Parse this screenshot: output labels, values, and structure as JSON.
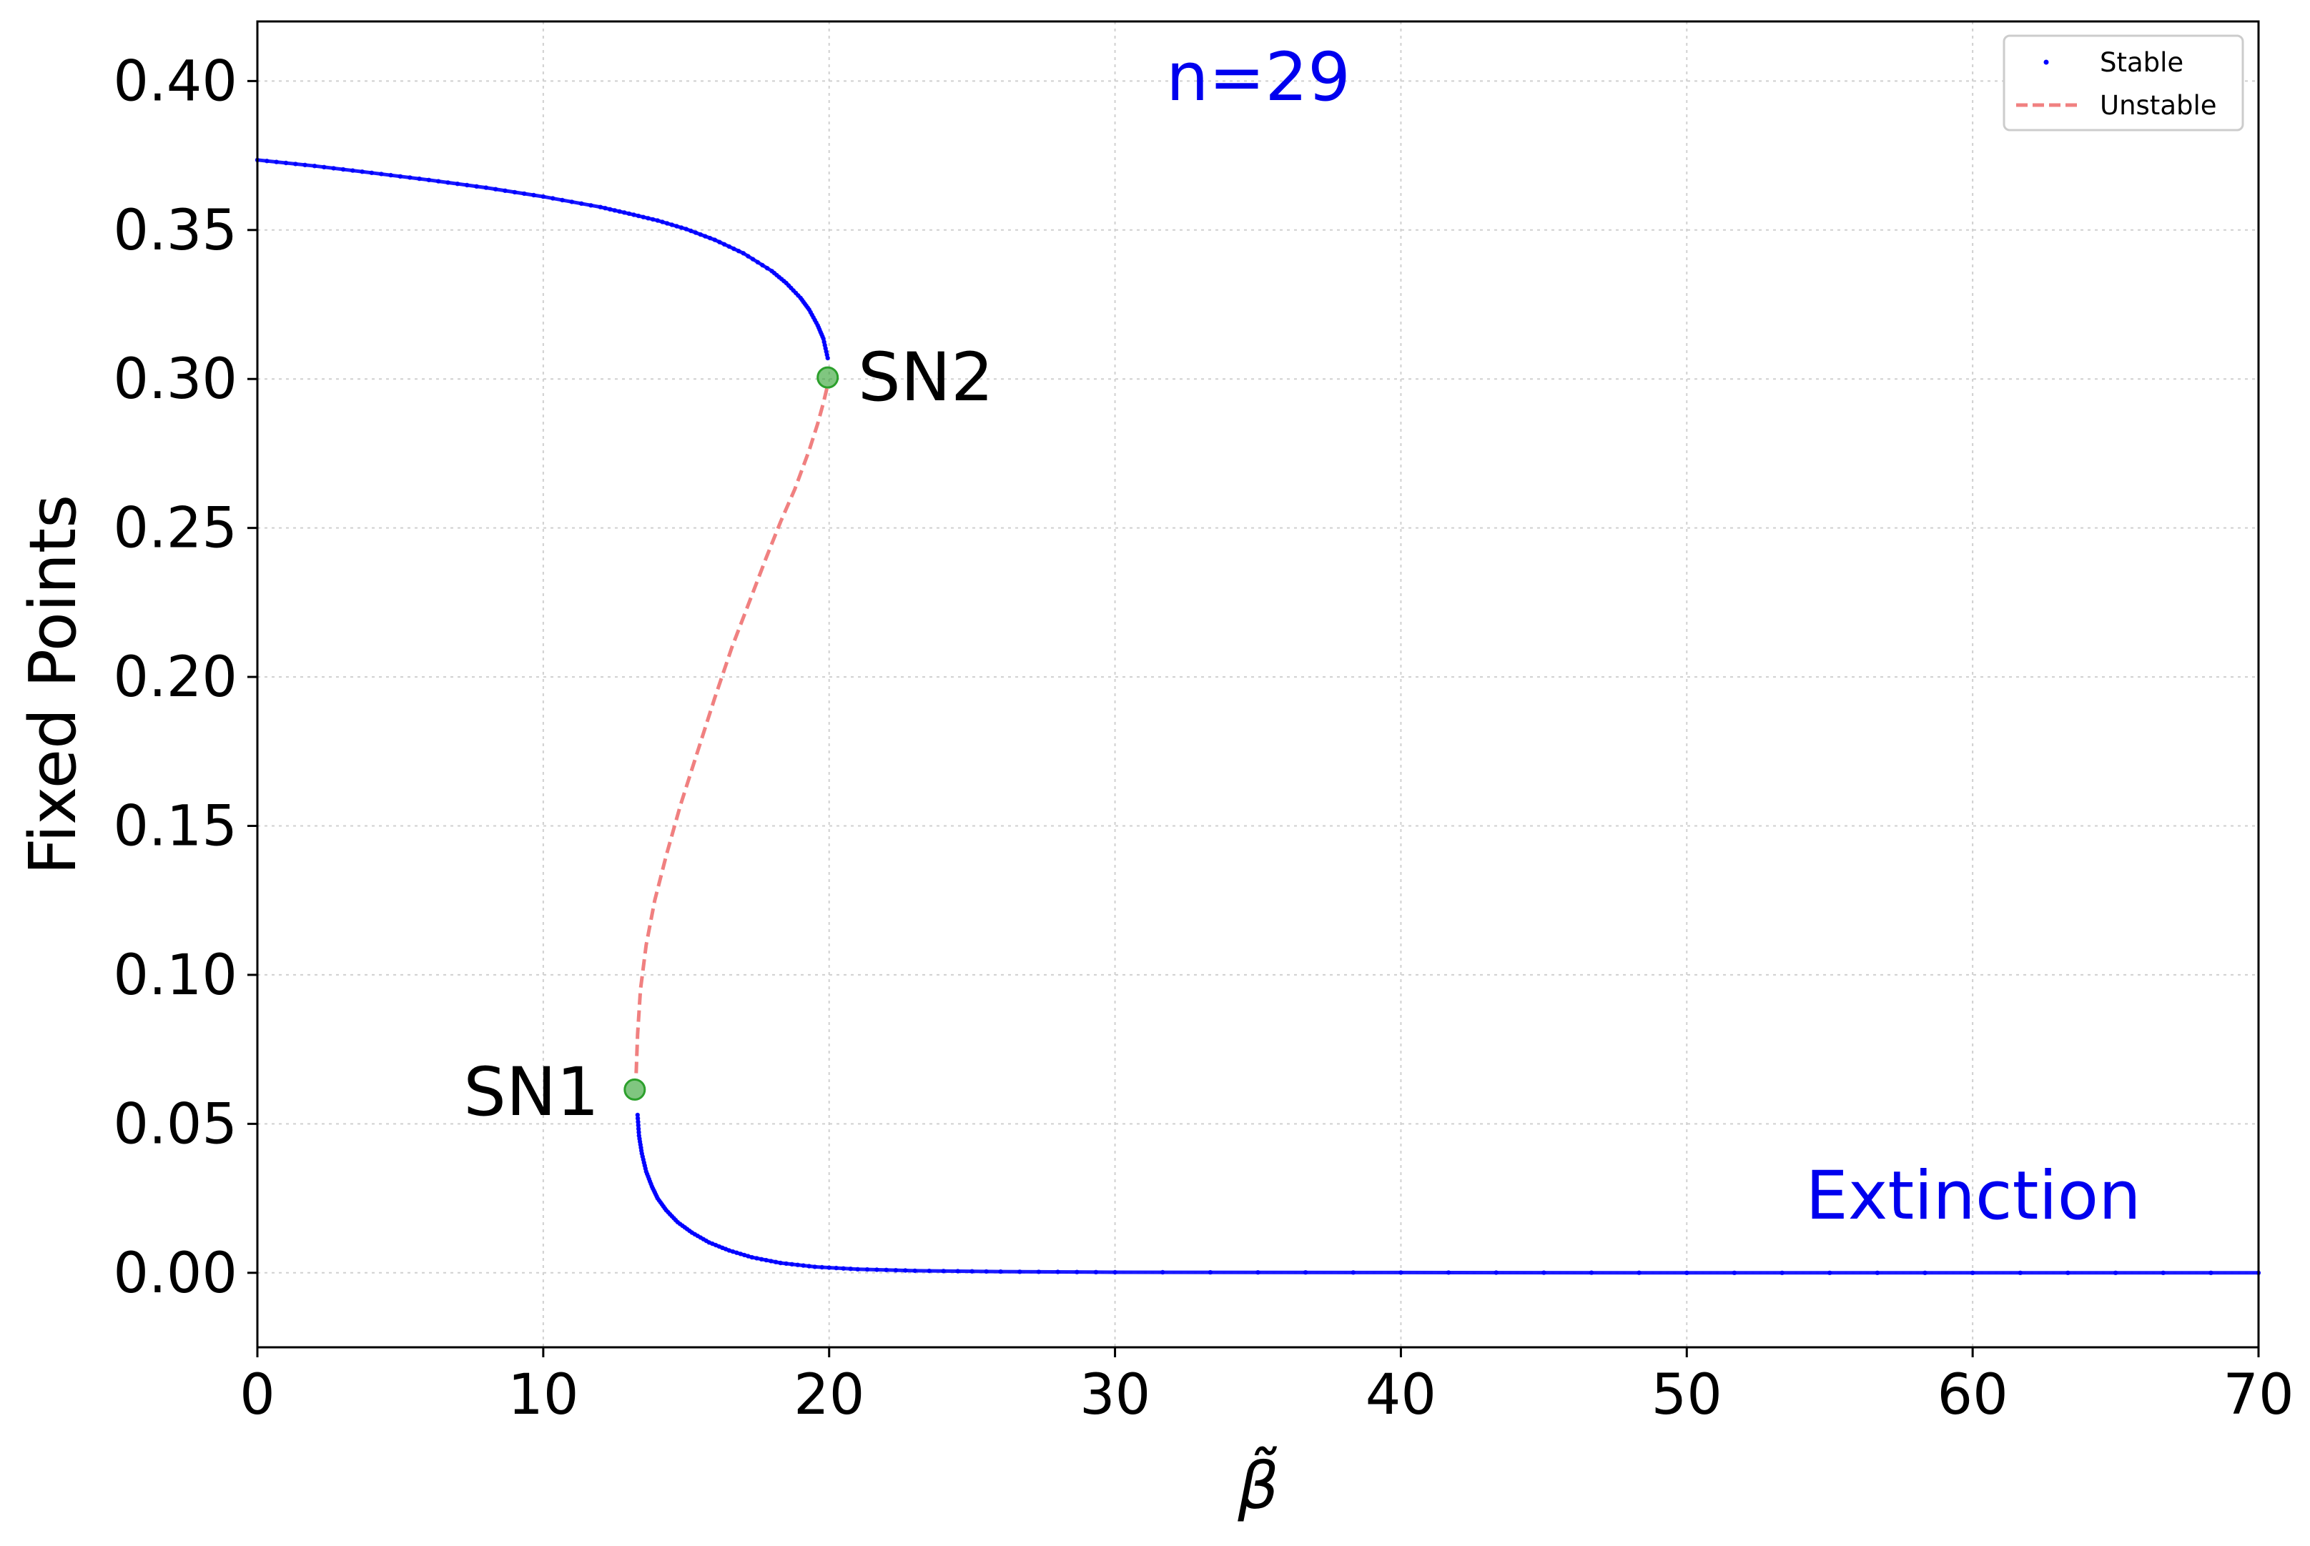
{
  "chart_data": {
    "type": "line",
    "xlabel": "β̃",
    "ylabel": "Fixed Points",
    "xlim": [
      0,
      70
    ],
    "ylim": [
      -0.025,
      0.42
    ],
    "x_ticks": [
      0,
      10,
      20,
      30,
      40,
      50,
      60,
      70
    ],
    "y_ticks": [
      0.0,
      0.05,
      0.1,
      0.15,
      0.2,
      0.25,
      0.3,
      0.35,
      0.4
    ],
    "x_tick_labels": [
      "0",
      "10",
      "20",
      "30",
      "40",
      "50",
      "60",
      "70"
    ],
    "y_tick_labels": [
      "0.00",
      "0.05",
      "0.10",
      "0.15",
      "0.20",
      "0.25",
      "0.30",
      "0.35",
      "0.40"
    ],
    "grid": true,
    "legend_position": "top-right",
    "legend": [
      "Stable",
      "Unstable"
    ],
    "series": [
      {
        "name": "Stable",
        "style": "dots",
        "color": "#0000ff",
        "segments": [
          {
            "x": [
              0,
              2,
              4,
              6,
              8,
              10,
              12,
              13,
              14,
              15,
              16,
              17,
              18,
              18.5,
              19,
              19.3,
              19.6,
              19.8,
              19.95
            ],
            "y": [
              0.3735,
              0.3715,
              0.3692,
              0.3668,
              0.3642,
              0.3612,
              0.3577,
              0.3555,
              0.3532,
              0.3503,
              0.3467,
              0.3422,
              0.3362,
              0.3322,
              0.3272,
              0.3233,
              0.318,
              0.3135,
              0.307
            ]
          },
          {
            "x": [
              13.3,
              13.35,
              13.45,
              13.6,
              13.8,
              14.0,
              14.3,
              14.7,
              15.2,
              15.8,
              16.5,
              17.3,
              18.3,
              19.5,
              21,
              23,
              26,
              30,
              40,
              50,
              60,
              70
            ],
            "y": [
              0.053,
              0.046,
              0.04,
              0.034,
              0.029,
              0.025,
              0.021,
              0.017,
              0.0135,
              0.0102,
              0.0075,
              0.0052,
              0.0033,
              0.002,
              0.0012,
              0.0007,
              0.0004,
              0.0002,
              0.0001,
              0.0,
              0.0,
              0.0
            ]
          }
        ]
      },
      {
        "name": "Unstable",
        "style": "dashed",
        "color": "#f08080",
        "x": [
          13.25,
          13.3,
          13.4,
          13.6,
          13.9,
          14.3,
          14.8,
          15.4,
          16.0,
          16.6,
          17.2,
          17.8,
          18.3,
          18.8,
          19.3,
          19.6,
          19.8,
          19.95
        ],
        "y": [
          0.067,
          0.08,
          0.095,
          0.11,
          0.125,
          0.14,
          0.157,
          0.175,
          0.193,
          0.21,
          0.225,
          0.24,
          0.252,
          0.263,
          0.276,
          0.285,
          0.292,
          0.298
        ]
      }
    ],
    "points": [
      {
        "label": "SN1",
        "x": 13.2,
        "y": 0.0615,
        "color": "#2ca02c"
      },
      {
        "label": "SN2",
        "x": 19.95,
        "y": 0.3005,
        "color": "#2ca02c"
      }
    ],
    "annotations": [
      {
        "text": "n=29",
        "color": "#0000ee"
      },
      {
        "text": "Extinction",
        "color": "#0000ee"
      }
    ]
  }
}
